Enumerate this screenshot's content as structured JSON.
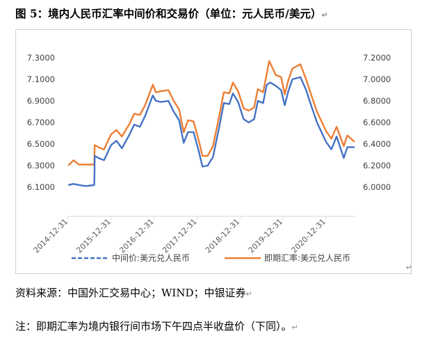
{
  "figure": {
    "title": "图 5：境内人民币汇率中间价和交易价（单位：元人民币/美元）",
    "source": "资料来源：中国外汇交易中心；WIND；中银证券",
    "note": "注：即期汇率为境内银行间市场下午四点半收盘价（下同）。",
    "para_mark": "↵"
  },
  "chart_data": {
    "type": "line",
    "title": "",
    "x_tick_labels": [
      "2014-12-31",
      "2015-12-31",
      "2016-12-31",
      "2017-12-31",
      "2018-12-31",
      "2019-12-31",
      "2020-12-31"
    ],
    "x_range": [
      "2014-12-31",
      "2021-08-31"
    ],
    "y_left": {
      "range": [
        6.1,
        7.3
      ],
      "ticks": [
        "6.1000",
        "6.3000",
        "6.5000",
        "6.7000",
        "6.9000",
        "7.1000",
        "7.3000"
      ]
    },
    "y_right": {
      "range": [
        6.0,
        7.2
      ],
      "ticks": [
        "6.0000",
        "6.2000",
        "6.4000",
        "6.6000",
        "6.8000",
        "7.0000",
        "7.2000"
      ]
    },
    "grid": false,
    "legend_position": "bottom",
    "series": [
      {
        "name": "中间价:美元兑人民币",
        "axis": "left",
        "color": "#4472C4",
        "style": "dashed",
        "points": [
          [
            "2015-01-01",
            6.12
          ],
          [
            "2015-02-15",
            6.13
          ],
          [
            "2015-04-01",
            6.12
          ],
          [
            "2015-06-01",
            6.11
          ],
          [
            "2015-08-10",
            6.12
          ],
          [
            "2015-08-12",
            6.23
          ],
          [
            "2015-08-14",
            6.39
          ],
          [
            "2015-09-15",
            6.37
          ],
          [
            "2015-11-01",
            6.35
          ],
          [
            "2015-12-31",
            6.49
          ],
          [
            "2016-02-15",
            6.53
          ],
          [
            "2016-04-01",
            6.46
          ],
          [
            "2016-06-01",
            6.58
          ],
          [
            "2016-07-15",
            6.68
          ],
          [
            "2016-09-01",
            6.66
          ],
          [
            "2016-10-15",
            6.76
          ],
          [
            "2016-12-20",
            6.95
          ],
          [
            "2017-01-15",
            6.9
          ],
          [
            "2017-03-01",
            6.89
          ],
          [
            "2017-05-01",
            6.9
          ],
          [
            "2017-06-15",
            6.8
          ],
          [
            "2017-08-01",
            6.72
          ],
          [
            "2017-09-08",
            6.51
          ],
          [
            "2017-10-15",
            6.61
          ],
          [
            "2017-12-01",
            6.61
          ],
          [
            "2018-01-15",
            6.43
          ],
          [
            "2018-02-15",
            6.29
          ],
          [
            "2018-03-31",
            6.3
          ],
          [
            "2018-05-15",
            6.38
          ],
          [
            "2018-06-30",
            6.62
          ],
          [
            "2018-08-15",
            6.88
          ],
          [
            "2018-10-01",
            6.87
          ],
          [
            "2018-11-01",
            6.97
          ],
          [
            "2018-12-15",
            6.89
          ],
          [
            "2019-01-31",
            6.73
          ],
          [
            "2019-03-15",
            6.7
          ],
          [
            "2019-04-30",
            6.73
          ],
          [
            "2019-06-01",
            6.9
          ],
          [
            "2019-07-15",
            6.88
          ],
          [
            "2019-08-15",
            7.05
          ],
          [
            "2019-09-15",
            7.07
          ],
          [
            "2019-10-31",
            7.04
          ],
          [
            "2019-12-15",
            7.0
          ],
          [
            "2020-01-15",
            6.86
          ],
          [
            "2020-02-15",
            6.99
          ],
          [
            "2020-03-20",
            7.1
          ],
          [
            "2020-05-27",
            7.12
          ],
          [
            "2020-07-15",
            7.0
          ],
          [
            "2020-09-01",
            6.84
          ],
          [
            "2020-10-15",
            6.7
          ],
          [
            "2020-12-31",
            6.52
          ],
          [
            "2021-02-15",
            6.45
          ],
          [
            "2021-03-31",
            6.57
          ],
          [
            "2021-05-31",
            6.37
          ],
          [
            "2021-06-30",
            6.47
          ],
          [
            "2021-08-31",
            6.47
          ]
        ]
      },
      {
        "name": "即期汇率:美元兑人民币",
        "axis": "right",
        "color": "#ED7D31",
        "style": "solid",
        "points": [
          [
            "2015-01-01",
            6.2
          ],
          [
            "2015-02-15",
            6.25
          ],
          [
            "2015-04-01",
            6.21
          ],
          [
            "2015-06-01",
            6.21
          ],
          [
            "2015-08-10",
            6.21
          ],
          [
            "2015-08-13",
            6.39
          ],
          [
            "2015-09-15",
            6.37
          ],
          [
            "2015-11-01",
            6.35
          ],
          [
            "2015-12-31",
            6.49
          ],
          [
            "2016-02-15",
            6.53
          ],
          [
            "2016-04-01",
            6.47
          ],
          [
            "2016-06-01",
            6.58
          ],
          [
            "2016-07-15",
            6.68
          ],
          [
            "2016-09-01",
            6.67
          ],
          [
            "2016-10-15",
            6.76
          ],
          [
            "2016-12-20",
            6.95
          ],
          [
            "2017-01-15",
            6.88
          ],
          [
            "2017-03-01",
            6.89
          ],
          [
            "2017-05-01",
            6.9
          ],
          [
            "2017-06-15",
            6.8
          ],
          [
            "2017-08-01",
            6.72
          ],
          [
            "2017-09-08",
            6.51
          ],
          [
            "2017-10-15",
            6.62
          ],
          [
            "2017-12-01",
            6.61
          ],
          [
            "2018-01-15",
            6.43
          ],
          [
            "2018-02-15",
            6.29
          ],
          [
            "2018-03-31",
            6.29
          ],
          [
            "2018-05-15",
            6.38
          ],
          [
            "2018-06-30",
            6.62
          ],
          [
            "2018-08-15",
            6.88
          ],
          [
            "2018-10-01",
            6.87
          ],
          [
            "2018-11-01",
            6.97
          ],
          [
            "2018-12-15",
            6.89
          ],
          [
            "2019-01-31",
            6.73
          ],
          [
            "2019-03-15",
            6.71
          ],
          [
            "2019-04-30",
            6.74
          ],
          [
            "2019-06-01",
            6.91
          ],
          [
            "2019-07-15",
            6.88
          ],
          [
            "2019-08-15",
            7.05
          ],
          [
            "2019-09-05",
            7.17
          ],
          [
            "2019-10-31",
            7.04
          ],
          [
            "2019-12-15",
            7.02
          ],
          [
            "2020-01-15",
            6.86
          ],
          [
            "2020-02-15",
            6.99
          ],
          [
            "2020-03-20",
            7.1
          ],
          [
            "2020-05-27",
            7.14
          ],
          [
            "2020-07-15",
            7.0
          ],
          [
            "2020-09-01",
            6.84
          ],
          [
            "2020-10-15",
            6.7
          ],
          [
            "2020-12-31",
            6.52
          ],
          [
            "2021-02-15",
            6.45
          ],
          [
            "2021-03-31",
            6.56
          ],
          [
            "2021-05-31",
            6.38
          ],
          [
            "2021-06-30",
            6.48
          ],
          [
            "2021-08-31",
            6.42
          ]
        ]
      }
    ]
  }
}
